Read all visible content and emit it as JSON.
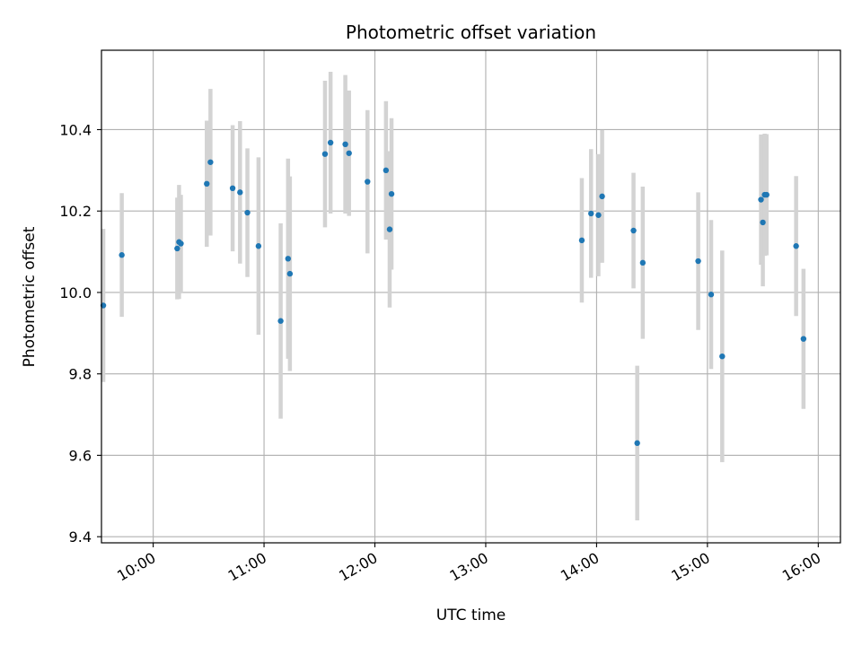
{
  "chart_data": {
    "type": "scatter",
    "title": "Photometric offset variation",
    "xlabel": "UTC time",
    "ylabel": "Photometric offset",
    "xlim": [
      "09:32",
      "16:12"
    ],
    "ylim": [
      9.385,
      10.595
    ],
    "x_ticks": [
      "10:00",
      "11:00",
      "12:00",
      "13:00",
      "14:00",
      "15:00",
      "16:00"
    ],
    "y_ticks": [
      9.4,
      9.6,
      9.8,
      10.0,
      10.2,
      10.4
    ],
    "y_tick_labels": [
      "9.4",
      "9.6",
      "9.8",
      "10.0",
      "10.2",
      "10.4"
    ],
    "grid": true,
    "marker_color": "#1f77b4",
    "errorbar_color": "#d3d3d3",
    "points": [
      {
        "time": "09:33",
        "y": 9.968,
        "err": 0.188
      },
      {
        "time": "09:43",
        "y": 10.092,
        "err": 0.152
      },
      {
        "time": "10:13",
        "y": 10.108,
        "err": 0.125
      },
      {
        "time": "10:14",
        "y": 10.124,
        "err": 0.14
      },
      {
        "time": "10:15",
        "y": 10.12,
        "err": 0.12
      },
      {
        "time": "10:29",
        "y": 10.267,
        "err": 0.155
      },
      {
        "time": "10:31",
        "y": 10.32,
        "err": 0.18
      },
      {
        "time": "10:43",
        "y": 10.256,
        "err": 0.155
      },
      {
        "time": "10:47",
        "y": 10.246,
        "err": 0.175
      },
      {
        "time": "10:51",
        "y": 10.196,
        "err": 0.158
      },
      {
        "time": "10:57",
        "y": 10.114,
        "err": 0.218
      },
      {
        "time": "11:09",
        "y": 9.93,
        "err": 0.24
      },
      {
        "time": "11:13",
        "y": 10.083,
        "err": 0.246
      },
      {
        "time": "11:14",
        "y": 10.046,
        "err": 0.239
      },
      {
        "time": "11:33",
        "y": 10.34,
        "err": 0.18
      },
      {
        "time": "11:36",
        "y": 10.368,
        "err": 0.174
      },
      {
        "time": "11:44",
        "y": 10.364,
        "err": 0.17
      },
      {
        "time": "11:46",
        "y": 10.342,
        "err": 0.154
      },
      {
        "time": "11:56",
        "y": 10.272,
        "err": 0.176
      },
      {
        "time": "12:06",
        "y": 10.3,
        "err": 0.17
      },
      {
        "time": "12:08",
        "y": 10.155,
        "err": 0.192
      },
      {
        "time": "12:09",
        "y": 10.242,
        "err": 0.186
      },
      {
        "time": "13:52",
        "y": 10.128,
        "err": 0.153
      },
      {
        "time": "13:57",
        "y": 10.194,
        "err": 0.158
      },
      {
        "time": "14:01",
        "y": 10.19,
        "err": 0.15
      },
      {
        "time": "14:03",
        "y": 10.236,
        "err": 0.163
      },
      {
        "time": "14:20",
        "y": 10.152,
        "err": 0.142
      },
      {
        "time": "14:22",
        "y": 9.63,
        "err": 0.19
      },
      {
        "time": "14:25",
        "y": 10.073,
        "err": 0.187
      },
      {
        "time": "14:55",
        "y": 10.077,
        "err": 0.169
      },
      {
        "time": "15:02",
        "y": 9.995,
        "err": 0.183
      },
      {
        "time": "15:08",
        "y": 9.843,
        "err": 0.26
      },
      {
        "time": "15:29",
        "y": 10.228,
        "err": 0.16
      },
      {
        "time": "15:30",
        "y": 10.172,
        "err": 0.157
      },
      {
        "time": "15:31",
        "y": 10.24,
        "err": 0.15
      },
      {
        "time": "15:32",
        "y": 10.24,
        "err": 0.149
      },
      {
        "time": "15:48",
        "y": 10.114,
        "err": 0.172
      },
      {
        "time": "15:52",
        "y": 9.886,
        "err": 0.172
      }
    ]
  }
}
